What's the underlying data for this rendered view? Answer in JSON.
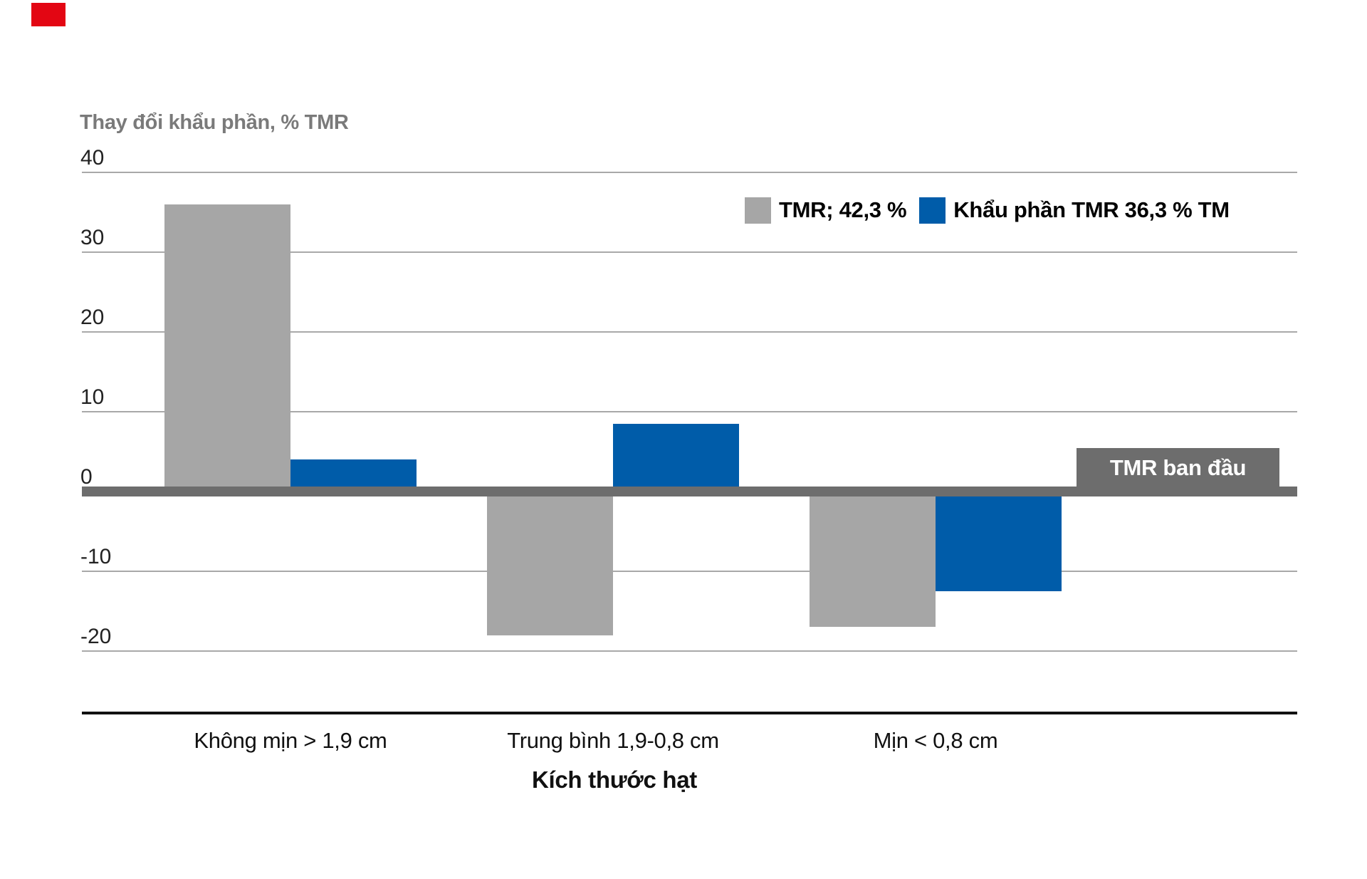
{
  "branding": {
    "corner_mark_color": "#e30613"
  },
  "chart_data": {
    "type": "bar",
    "title": "Thay đổi khẩu phần, % TMR",
    "xlabel": "Kích thước hạt",
    "ylabel": "Thay đổi khẩu phần, % TMR",
    "categories": [
      "Không mịn > 1,9 cm",
      "Trung bình 1,9-0,8 cm",
      "Mịn < 0,8 cm"
    ],
    "series": [
      {
        "name": "TMR; 42,3 %",
        "color": "#a6a6a6",
        "values": [
          36,
          -18,
          -17
        ]
      },
      {
        "name": "Khẩu phần TMR 36,3 % TM",
        "color": "#005ca9",
        "values": [
          4,
          8.5,
          -12.5
        ]
      }
    ],
    "y_ticks": [
      40,
      30,
      20,
      10,
      0,
      -10,
      -20
    ],
    "ylim": [
      -20,
      40
    ],
    "grid": true,
    "legend_position": "top-right",
    "baseline_value": 0,
    "baseline_label": "TMR ban đầu",
    "colors": {
      "grid": "#a9a9a9",
      "baseline": "#6d6d6d",
      "axis_line": "#111111",
      "title_text": "#7a7a7a",
      "tick_text": "#222222",
      "category_text": "#111111",
      "badge_text": "#ffffff"
    }
  }
}
